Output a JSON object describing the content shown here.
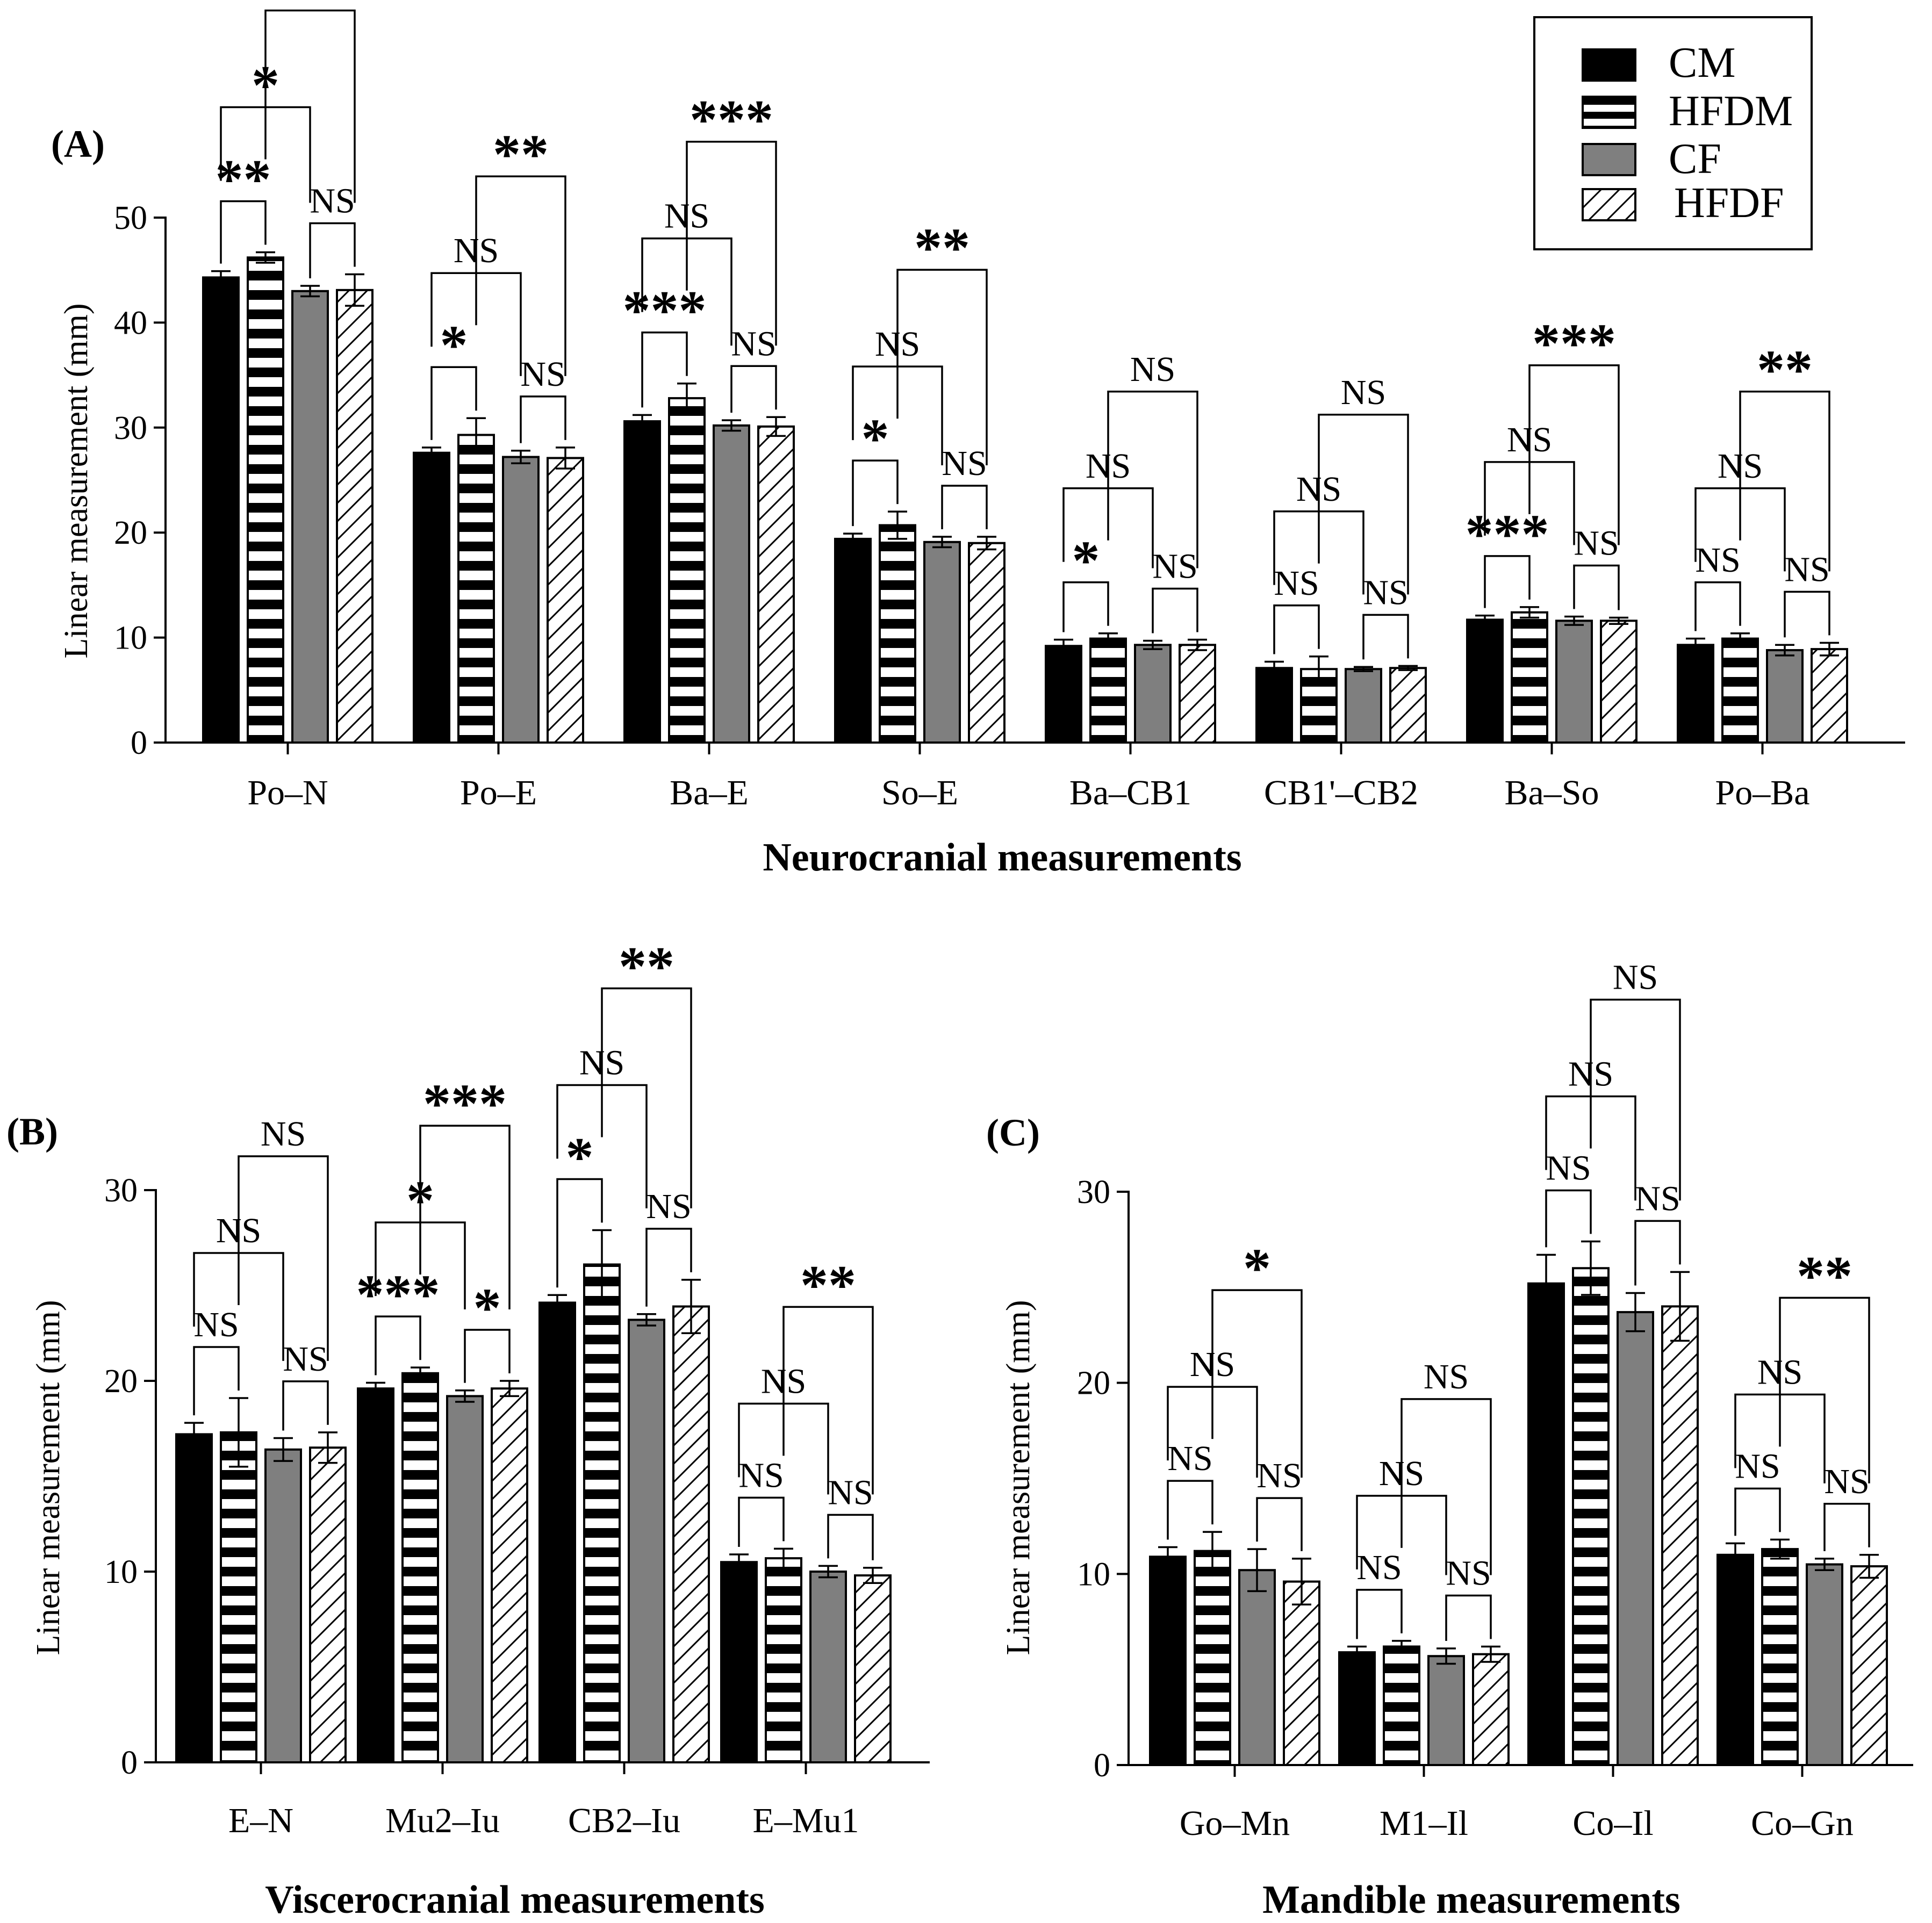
{
  "legend": [
    {
      "label": "CM",
      "pattern": "solid-black"
    },
    {
      "label": "HFDM",
      "pattern": "horizontal-stripes"
    },
    {
      "label": "CF",
      "pattern": "solid-gray"
    },
    {
      "label": "HFDF",
      "pattern": "diagonal-hatch"
    }
  ],
  "colors": {
    "cm": "#000000",
    "cf": "#7f7f7f",
    "outline": "#000000",
    "background": "#ffffff"
  },
  "chart_data": [
    {
      "panel": "(A)",
      "type": "bar",
      "xlabel": "Neurocranial measurements",
      "ylabel": "Linear measurement (mm)",
      "ylim": [
        0,
        50
      ],
      "yticks": [
        0,
        10,
        20,
        30,
        40,
        50
      ],
      "grid": false,
      "categories": [
        "Po–N",
        "Po–E",
        "Ba–E",
        "So–E",
        "Ba–CB1",
        "CB1'–CB2",
        "Ba–So",
        "Po–Ba"
      ],
      "series": [
        {
          "name": "CM",
          "values": [
            44.3,
            27.6,
            30.6,
            19.4,
            9.2,
            7.1,
            11.7,
            9.3
          ],
          "errors": [
            0.6,
            0.5,
            0.6,
            0.5,
            0.6,
            0.6,
            0.4,
            0.6
          ]
        },
        {
          "name": "HFDM",
          "values": [
            46.2,
            29.3,
            32.8,
            20.7,
            9.9,
            7.0,
            12.4,
            9.9
          ],
          "errors": [
            0.5,
            1.6,
            1.4,
            1.3,
            0.5,
            1.2,
            0.5,
            0.5
          ]
        },
        {
          "name": "CF",
          "values": [
            43.0,
            27.2,
            30.2,
            19.1,
            9.3,
            7.0,
            11.6,
            8.8
          ],
          "errors": [
            0.5,
            0.6,
            0.5,
            0.5,
            0.4,
            0.2,
            0.4,
            0.5
          ]
        },
        {
          "name": "HFDF",
          "values": [
            43.1,
            27.1,
            30.1,
            19.0,
            9.3,
            7.1,
            11.6,
            8.9
          ],
          "errors": [
            1.5,
            1.0,
            0.9,
            0.6,
            0.5,
            0.2,
            0.3,
            0.6
          ]
        }
      ],
      "comparisons": [
        [
          {
            "pair": [
              0,
              1
            ],
            "label": "**"
          },
          {
            "pair": [
              2,
              3
            ],
            "label": "NS"
          },
          {
            "pair": [
              0,
              2
            ],
            "label": "*"
          },
          {
            "pair": [
              1,
              3
            ],
            "label": "***"
          }
        ],
        [
          {
            "pair": [
              0,
              1
            ],
            "label": "*"
          },
          {
            "pair": [
              2,
              3
            ],
            "label": "NS"
          },
          {
            "pair": [
              0,
              2
            ],
            "label": "NS"
          },
          {
            "pair": [
              1,
              3
            ],
            "label": "**"
          }
        ],
        [
          {
            "pair": [
              0,
              1
            ],
            "label": "***"
          },
          {
            "pair": [
              2,
              3
            ],
            "label": "NS"
          },
          {
            "pair": [
              0,
              2
            ],
            "label": "NS"
          },
          {
            "pair": [
              1,
              3
            ],
            "label": "***"
          }
        ],
        [
          {
            "pair": [
              0,
              1
            ],
            "label": "*"
          },
          {
            "pair": [
              2,
              3
            ],
            "label": "NS"
          },
          {
            "pair": [
              0,
              2
            ],
            "label": "NS"
          },
          {
            "pair": [
              1,
              3
            ],
            "label": "**"
          }
        ],
        [
          {
            "pair": [
              0,
              1
            ],
            "label": "*"
          },
          {
            "pair": [
              2,
              3
            ],
            "label": "NS"
          },
          {
            "pair": [
              0,
              2
            ],
            "label": "NS"
          },
          {
            "pair": [
              1,
              3
            ],
            "label": "NS"
          }
        ],
        [
          {
            "pair": [
              0,
              1
            ],
            "label": "NS"
          },
          {
            "pair": [
              2,
              3
            ],
            "label": "NS"
          },
          {
            "pair": [
              0,
              2
            ],
            "label": "NS"
          },
          {
            "pair": [
              1,
              3
            ],
            "label": "NS"
          }
        ],
        [
          {
            "pair": [
              0,
              1
            ],
            "label": "***"
          },
          {
            "pair": [
              2,
              3
            ],
            "label": "NS"
          },
          {
            "pair": [
              0,
              2
            ],
            "label": "NS"
          },
          {
            "pair": [
              1,
              3
            ],
            "label": "***"
          }
        ],
        [
          {
            "pair": [
              0,
              1
            ],
            "label": "NS"
          },
          {
            "pair": [
              2,
              3
            ],
            "label": "NS"
          },
          {
            "pair": [
              0,
              2
            ],
            "label": "NS"
          },
          {
            "pair": [
              1,
              3
            ],
            "label": "**"
          }
        ]
      ]
    },
    {
      "panel": "(B)",
      "type": "bar",
      "xlabel": "Viscerocranial measurements",
      "ylabel": "Linear measurement (mm)",
      "ylim": [
        0,
        30
      ],
      "yticks": [
        0,
        10,
        20,
        30
      ],
      "grid": false,
      "categories": [
        "E–N",
        "Mu2–Iu",
        "CB2–Iu",
        "E–Mu1"
      ],
      "series": [
        {
          "name": "CM",
          "values": [
            17.2,
            19.6,
            24.1,
            10.5
          ],
          "errors": [
            0.6,
            0.3,
            0.4,
            0.4
          ]
        },
        {
          "name": "HFDM",
          "values": [
            17.3,
            20.4,
            26.1,
            10.7
          ],
          "errors": [
            1.8,
            0.3,
            1.8,
            0.5
          ]
        },
        {
          "name": "CF",
          "values": [
            16.4,
            19.2,
            23.2,
            10.0
          ],
          "errors": [
            0.6,
            0.3,
            0.3,
            0.3
          ]
        },
        {
          "name": "HFDF",
          "values": [
            16.5,
            19.6,
            23.9,
            9.8
          ],
          "errors": [
            0.8,
            0.4,
            1.4,
            0.4
          ]
        }
      ],
      "comparisons": [
        [
          {
            "pair": [
              0,
              1
            ],
            "label": "NS"
          },
          {
            "pair": [
              2,
              3
            ],
            "label": "NS"
          },
          {
            "pair": [
              0,
              2
            ],
            "label": "NS"
          },
          {
            "pair": [
              1,
              3
            ],
            "label": "NS"
          }
        ],
        [
          {
            "pair": [
              0,
              1
            ],
            "label": "***"
          },
          {
            "pair": [
              2,
              3
            ],
            "label": "*"
          },
          {
            "pair": [
              0,
              2
            ],
            "label": "*"
          },
          {
            "pair": [
              1,
              3
            ],
            "label": "***"
          }
        ],
        [
          {
            "pair": [
              0,
              1
            ],
            "label": "*"
          },
          {
            "pair": [
              2,
              3
            ],
            "label": "NS"
          },
          {
            "pair": [
              0,
              2
            ],
            "label": "NS"
          },
          {
            "pair": [
              1,
              3
            ],
            "label": "**"
          }
        ],
        [
          {
            "pair": [
              0,
              1
            ],
            "label": "NS"
          },
          {
            "pair": [
              2,
              3
            ],
            "label": "NS"
          },
          {
            "pair": [
              0,
              2
            ],
            "label": "NS"
          },
          {
            "pair": [
              1,
              3
            ],
            "label": "**"
          }
        ]
      ]
    },
    {
      "panel": "(C)",
      "type": "bar",
      "xlabel": "Mandible measurements",
      "ylabel": "Linear measurement (mm)",
      "ylim": [
        0,
        30
      ],
      "yticks": [
        0,
        10,
        20,
        30
      ],
      "grid": false,
      "categories": [
        "Go–Mn",
        "M1–Il",
        "Co–Il",
        "Co–Gn"
      ],
      "series": [
        {
          "name": "CM",
          "values": [
            10.9,
            5.9,
            25.2,
            11.0
          ],
          "errors": [
            0.5,
            0.3,
            1.5,
            0.6
          ]
        },
        {
          "name": "HFDM",
          "values": [
            11.2,
            6.2,
            26.0,
            11.3
          ],
          "errors": [
            1.0,
            0.3,
            1.4,
            0.5
          ]
        },
        {
          "name": "CF",
          "values": [
            10.2,
            5.7,
            23.7,
            10.5
          ],
          "errors": [
            1.1,
            0.4,
            1.0,
            0.3
          ]
        },
        {
          "name": "HFDF",
          "values": [
            9.6,
            5.8,
            24.0,
            10.4
          ],
          "errors": [
            1.2,
            0.4,
            1.8,
            0.6
          ]
        }
      ],
      "comparisons": [
        [
          {
            "pair": [
              0,
              1
            ],
            "label": "NS"
          },
          {
            "pair": [
              2,
              3
            ],
            "label": "NS"
          },
          {
            "pair": [
              0,
              2
            ],
            "label": "NS"
          },
          {
            "pair": [
              1,
              3
            ],
            "label": "*"
          }
        ],
        [
          {
            "pair": [
              0,
              1
            ],
            "label": "NS"
          },
          {
            "pair": [
              2,
              3
            ],
            "label": "NS"
          },
          {
            "pair": [
              0,
              2
            ],
            "label": "NS"
          },
          {
            "pair": [
              1,
              3
            ],
            "label": "NS"
          }
        ],
        [
          {
            "pair": [
              0,
              1
            ],
            "label": "NS"
          },
          {
            "pair": [
              2,
              3
            ],
            "label": "NS"
          },
          {
            "pair": [
              0,
              2
            ],
            "label": "NS"
          },
          {
            "pair": [
              1,
              3
            ],
            "label": "NS"
          }
        ],
        [
          {
            "pair": [
              0,
              1
            ],
            "label": "NS"
          },
          {
            "pair": [
              2,
              3
            ],
            "label": "NS"
          },
          {
            "pair": [
              0,
              2
            ],
            "label": "NS"
          },
          {
            "pair": [
              1,
              3
            ],
            "label": "**"
          }
        ]
      ]
    }
  ]
}
